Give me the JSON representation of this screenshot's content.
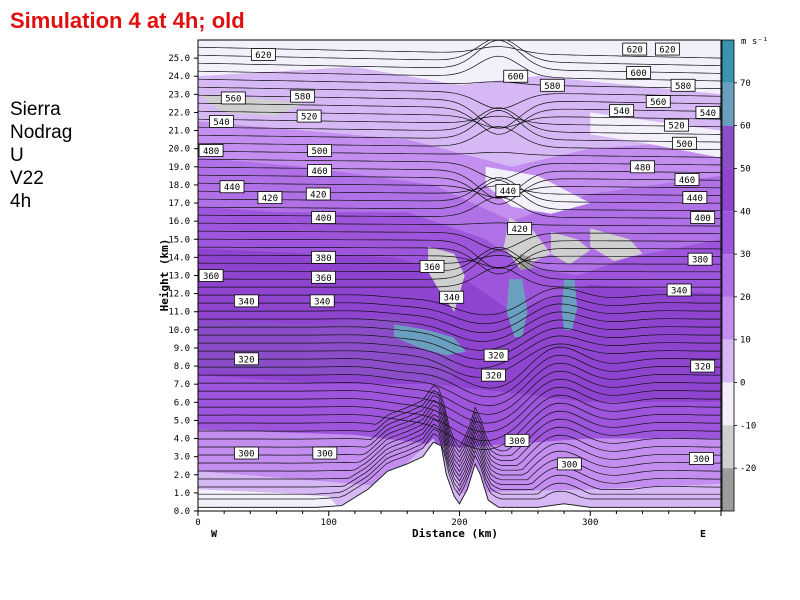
{
  "slide_title": "Simulation 4 at 4h; old",
  "side_labels": [
    "Sierra",
    "Nodrag",
    "U",
    "V22",
    "4h"
  ],
  "chart_data": {
    "type": "contour",
    "xlabel": "Distance (km)",
    "ylabel": "Height (km)",
    "xlim": [
      0,
      400
    ],
    "ylim": [
      0,
      26
    ],
    "x_ticks": [
      0,
      100,
      200,
      300
    ],
    "y_ticks": [
      "0.0",
      "1.0",
      "2.0",
      "3.0",
      "4.0",
      "5.0",
      "6.0",
      "7.0",
      "8.0",
      "9.0",
      "10.0",
      "11.0",
      "12.0",
      "13.0",
      "14.0",
      "15.0",
      "16.0",
      "17.0",
      "18.0",
      "19.0",
      "20.0",
      "21.0",
      "22.0",
      "23.0",
      "24.0",
      "25.0"
    ],
    "x_end_labels": {
      "left": "W",
      "right": "E"
    },
    "colorbar": {
      "unit": "m s⁻¹",
      "ticks": [
        70,
        60,
        50,
        40,
        30,
        20,
        10,
        0,
        -10,
        -20
      ],
      "colors": {
        "-30": "#6e6e6e",
        "-20": "#9c9c9c",
        "-10": "#cfcfcf",
        "0": "#f3f0fb",
        "10": "#d6b8f5",
        "20": "#c38ef0",
        "30": "#b070e6",
        "40": "#9d55dc",
        "50": "#8f44cf",
        "60": "#8a4fc8",
        "70": "#6a9fc0",
        "80": "#3a94b0"
      }
    },
    "contour_labels": [
      {
        "value": "620",
        "x": 50,
        "y": 25.2
      },
      {
        "value": "560",
        "x": 27,
        "y": 22.8
      },
      {
        "value": "580",
        "x": 80,
        "y": 22.9
      },
      {
        "value": "540",
        "x": 18,
        "y": 21.5
      },
      {
        "value": "520",
        "x": 85,
        "y": 21.8
      },
      {
        "value": "480",
        "x": 10,
        "y": 19.9
      },
      {
        "value": "500",
        "x": 93,
        "y": 19.9
      },
      {
        "value": "460",
        "x": 93,
        "y": 18.8
      },
      {
        "value": "440",
        "x": 26,
        "y": 17.9
      },
      {
        "value": "420",
        "x": 55,
        "y": 17.3
      },
      {
        "value": "420",
        "x": 92,
        "y": 17.5
      },
      {
        "value": "400",
        "x": 96,
        "y": 16.2
      },
      {
        "value": "380",
        "x": 96,
        "y": 14.0
      },
      {
        "value": "360",
        "x": 10,
        "y": 13.0
      },
      {
        "value": "360",
        "x": 96,
        "y": 12.9
      },
      {
        "value": "340",
        "x": 37,
        "y": 11.6
      },
      {
        "value": "340",
        "x": 95,
        "y": 11.6
      },
      {
        "value": "360",
        "x": 179,
        "y": 13.5
      },
      {
        "value": "340",
        "x": 194,
        "y": 11.8
      },
      {
        "value": "440",
        "x": 237,
        "y": 17.7
      },
      {
        "value": "420",
        "x": 246,
        "y": 15.6
      },
      {
        "value": "600",
        "x": 243,
        "y": 24.0
      },
      {
        "value": "580",
        "x": 271,
        "y": 23.5
      },
      {
        "value": "620",
        "x": 334,
        "y": 25.5
      },
      {
        "value": "620",
        "x": 359,
        "y": 25.5
      },
      {
        "value": "600",
        "x": 337,
        "y": 24.2
      },
      {
        "value": "580",
        "x": 371,
        "y": 23.5
      },
      {
        "value": "560",
        "x": 352,
        "y": 22.6
      },
      {
        "value": "540",
        "x": 324,
        "y": 22.1
      },
      {
        "value": "540",
        "x": 390,
        "y": 22.0
      },
      {
        "value": "520",
        "x": 366,
        "y": 21.3
      },
      {
        "value": "500",
        "x": 372,
        "y": 20.3
      },
      {
        "value": "480",
        "x": 340,
        "y": 19.0
      },
      {
        "value": "460",
        "x": 374,
        "y": 18.3
      },
      {
        "value": "440",
        "x": 380,
        "y": 17.3
      },
      {
        "value": "400",
        "x": 386,
        "y": 16.2
      },
      {
        "value": "380",
        "x": 384,
        "y": 13.9
      },
      {
        "value": "340",
        "x": 368,
        "y": 12.2
      },
      {
        "value": "320",
        "x": 37,
        "y": 8.4
      },
      {
        "value": "320",
        "x": 228,
        "y": 8.6
      },
      {
        "value": "320",
        "x": 226,
        "y": 7.5
      },
      {
        "value": "320",
        "x": 386,
        "y": 8.0
      },
      {
        "value": "300",
        "x": 37,
        "y": 3.2
      },
      {
        "value": "300",
        "x": 97,
        "y": 3.2
      },
      {
        "value": "300",
        "x": 244,
        "y": 3.9
      },
      {
        "value": "300",
        "x": 284,
        "y": 2.6
      },
      {
        "value": "300",
        "x": 385,
        "y": 2.9
      }
    ]
  }
}
